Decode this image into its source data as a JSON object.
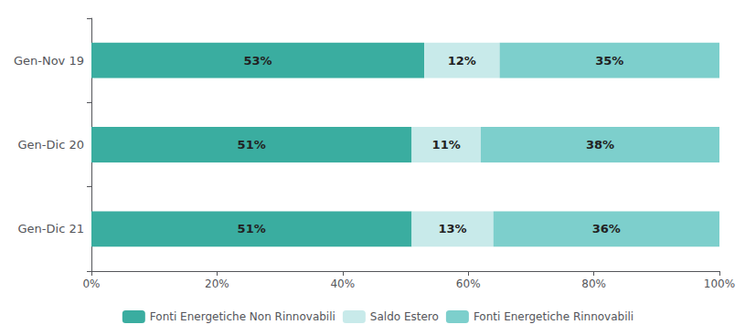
{
  "chart_data": {
    "type": "bar",
    "orientation": "horizontal",
    "stacked": true,
    "categories": [
      "Gen-Nov 19",
      "Gen-Dic 20",
      "Gen-Dic 21"
    ],
    "series": [
      {
        "name": "Fonti Energetiche Non Rinnovabili",
        "color": "#3aada0",
        "values": [
          53,
          51,
          51
        ],
        "value_labels": [
          "53%",
          "51%",
          "51%"
        ]
      },
      {
        "name": "Saldo Estero",
        "color": "#c8eaea",
        "values": [
          12,
          11,
          13
        ],
        "value_labels": [
          "12%",
          "11%",
          "13%"
        ]
      },
      {
        "name": "Fonti Energetiche Rinnovabili",
        "color": "#7dcfcc",
        "values": [
          35,
          38,
          36
        ],
        "value_labels": [
          "35%",
          "38%",
          "36%"
        ]
      }
    ],
    "xlim": [
      0,
      100
    ],
    "xticks": [
      {
        "value": 0,
        "label": "0%"
      },
      {
        "value": 20,
        "label": "20%"
      },
      {
        "value": 40,
        "label": "40%"
      },
      {
        "value": 60,
        "label": "60%"
      },
      {
        "value": 80,
        "label": "80%"
      },
      {
        "value": 100,
        "label": "100%"
      }
    ],
    "data_labels": true,
    "legend": "bottom",
    "grid": false
  }
}
